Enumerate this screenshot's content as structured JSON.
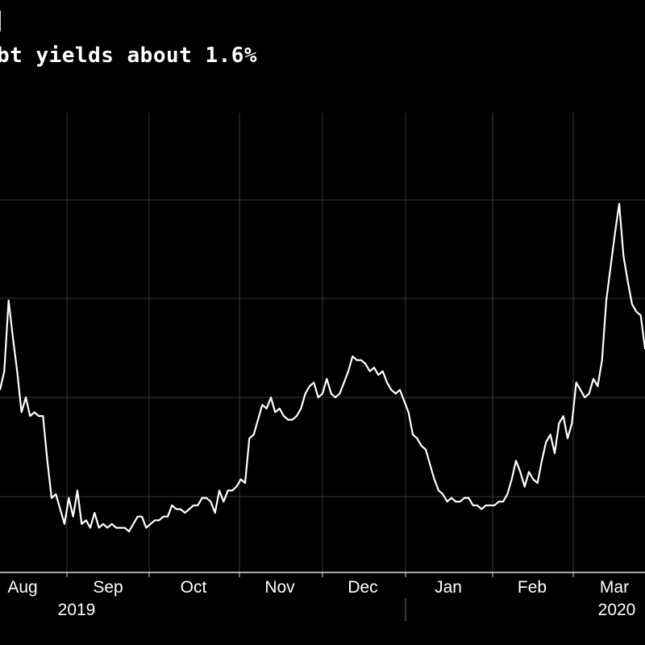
{
  "header": {
    "title": "l",
    "subtitle": "bt yields about 1.6%"
  },
  "chart_data": {
    "type": "line",
    "title": "l",
    "subtitle": "bt yields about 1.6%",
    "xlabel": "",
    "ylabel": "",
    "x_tick_labels": [
      "Aug",
      "Sep",
      "Oct",
      "Nov",
      "Dec",
      "Jan",
      "Feb",
      "Mar"
    ],
    "year_labels": [
      "2019",
      "2020"
    ],
    "grid": true,
    "colors": {
      "background": "#000000",
      "line": "#ffffff",
      "grid": "#3a3a3a"
    },
    "ylim": [
      0,
      100
    ],
    "series": [
      {
        "values": [
          49,
          54,
          73,
          63,
          54,
          43,
          47,
          42,
          43,
          42,
          42,
          30,
          20,
          21,
          17,
          13,
          20,
          15,
          22,
          13,
          14,
          12,
          16,
          12,
          13,
          12,
          13,
          12,
          12,
          12,
          11,
          13,
          15,
          15,
          12,
          13,
          14,
          14,
          15,
          15,
          18,
          17,
          17,
          16,
          17,
          18,
          18,
          20,
          20,
          19,
          16,
          22,
          19,
          22,
          22,
          23,
          25,
          24,
          36,
          37,
          41,
          45,
          44,
          47,
          43,
          44,
          42,
          41,
          41,
          42,
          44,
          48,
          50,
          51,
          47,
          48,
          52,
          48,
          47,
          48,
          51,
          54,
          58,
          57,
          57,
          56,
          54,
          55,
          53,
          54,
          51,
          49,
          48,
          49,
          46,
          43,
          37,
          36,
          34,
          33,
          29,
          25,
          22,
          21,
          19,
          20,
          19,
          19,
          20,
          20,
          18,
          18,
          17,
          18,
          18,
          18,
          19,
          19,
          21,
          25,
          30,
          27,
          23,
          27,
          25,
          24,
          30,
          35,
          37,
          32,
          40,
          42,
          36,
          40,
          51,
          49,
          47,
          48,
          52,
          50,
          57,
          73,
          82,
          91,
          99,
          85,
          78,
          72,
          70,
          69,
          60
        ]
      }
    ]
  }
}
